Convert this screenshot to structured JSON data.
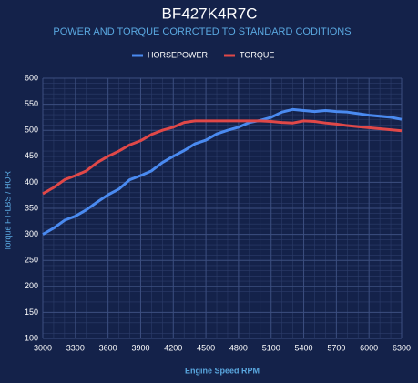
{
  "chart_data": {
    "type": "line",
    "title": "BF427K4R7C",
    "subtitle": "POWER AND TORQUE CORRCTED TO STANDARD CODITIONS",
    "xlabel": "Engine Speed RPM",
    "ylabel": "Torque FT-LBS / HOR",
    "x": [
      3000,
      3100,
      3200,
      3300,
      3400,
      3500,
      3600,
      3700,
      3800,
      3900,
      4000,
      4100,
      4200,
      4300,
      4400,
      4500,
      4600,
      4700,
      4800,
      4900,
      5000,
      5100,
      5200,
      5300,
      5400,
      5500,
      5600,
      5700,
      5800,
      5900,
      6000,
      6100,
      6200,
      6300
    ],
    "series": [
      {
        "name": "HORSEPOWER",
        "color": "#4a8af0",
        "values": [
          300,
          312,
          327,
          335,
          347,
          362,
          376,
          387,
          405,
          413,
          422,
          438,
          450,
          461,
          474,
          481,
          493,
          500,
          506,
          515,
          519,
          525,
          535,
          540,
          538,
          536,
          538,
          536,
          535,
          532,
          529,
          527,
          525,
          521
        ]
      },
      {
        "name": "TORQUE",
        "color": "#e04848",
        "values": [
          378,
          390,
          405,
          413,
          422,
          438,
          450,
          460,
          472,
          480,
          492,
          500,
          506,
          515,
          518,
          518,
          518,
          518,
          518,
          518,
          518,
          517,
          515,
          514,
          518,
          517,
          514,
          512,
          509,
          507,
          505,
          503,
          501,
          499
        ]
      }
    ],
    "xlim": [
      3000,
      6300
    ],
    "xticks": [
      3000,
      3300,
      3600,
      3900,
      4200,
      4500,
      4800,
      5100,
      5400,
      5700,
      6000,
      6300
    ],
    "ylim": [
      100,
      600
    ],
    "yticks": [
      100,
      150,
      200,
      250,
      300,
      350,
      400,
      450,
      500,
      550,
      600
    ],
    "grid": true,
    "legend": "top"
  }
}
